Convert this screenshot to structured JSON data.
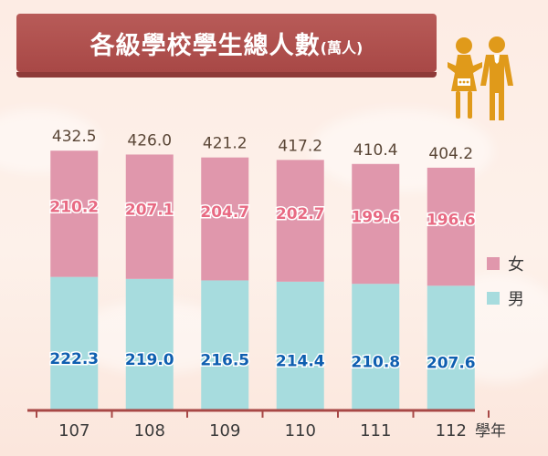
{
  "header": {
    "title": "各級學校學生總人數",
    "unit": "(萬人)"
  },
  "icons": {
    "people": "man-woman-icon"
  },
  "chart_data": {
    "type": "bar",
    "stacked": true,
    "categories": [
      "107",
      "108",
      "109",
      "110",
      "111",
      "112"
    ],
    "x_unit_label": "學年",
    "totals": [
      432.5,
      426.0,
      421.2,
      417.2,
      410.4,
      404.2
    ],
    "total_labels": [
      "432.5",
      "426.0",
      "421.2",
      "417.2",
      "410.4",
      "404.2"
    ],
    "series": [
      {
        "name": "男",
        "values": [
          222.3,
          219.0,
          216.5,
          214.4,
          210.8,
          207.6
        ],
        "labels": [
          "222.3",
          "219.0",
          "216.5",
          "214.4",
          "210.8",
          "207.6"
        ],
        "color": "#a7dcde",
        "label_color": "#0f5fb0"
      },
      {
        "name": "女",
        "values": [
          210.2,
          207.1,
          204.7,
          202.7,
          199.6,
          196.6
        ],
        "labels": [
          "210.2",
          "207.1",
          "204.7",
          "202.7",
          "199.6",
          "196.6"
        ],
        "color": "#e097ac",
        "label_color": "#e86a83"
      }
    ],
    "legend_position": "right",
    "ylim": [
      0,
      445
    ],
    "grid": false,
    "colors": {
      "axis": "#a84846",
      "total_label": "#5a4636",
      "banner": "#a84846",
      "icon": "#e09a1a"
    }
  }
}
